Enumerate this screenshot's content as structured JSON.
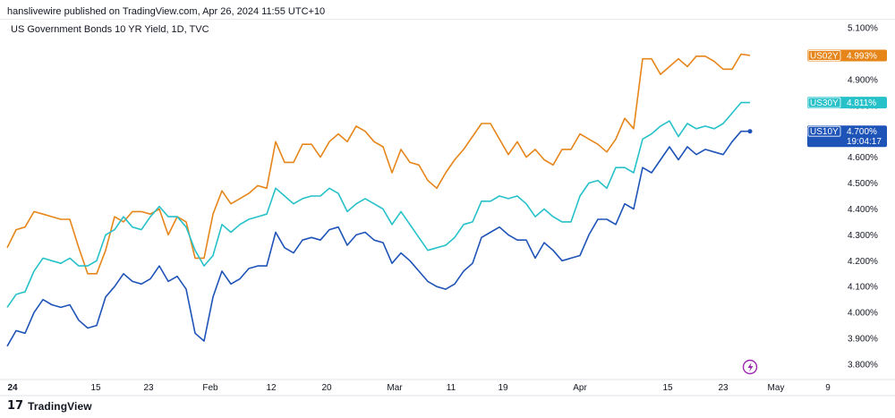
{
  "publisher_line": "hanslivewire published on TradingView.com, Apr 26, 2024 11:55 UTC+10",
  "symbol_line": "US Government Bonds 10 YR Yield, 1D, TVC",
  "footer": {
    "logo_text": "TradingView",
    "logo_mark": "17"
  },
  "colors": {
    "us02y": "#e6861a",
    "us30y": "#26c1c9",
    "us10y": "#1e53b7",
    "grid": "#f0f3fa",
    "axis": "#131722",
    "event": "#9c27b0"
  },
  "event_icon": "lightning-icon",
  "chart_data": {
    "type": "line",
    "x_unit": "trading day index",
    "x_tick_labels": [
      "24",
      "15",
      "23",
      "Feb",
      "12",
      "20",
      "Mar",
      "11",
      "19",
      "Apr",
      "15",
      "23",
      "May",
      "9"
    ],
    "y_tick_labels": [
      "3.800%",
      "3.900%",
      "4.000%",
      "4.100%",
      "4.200%",
      "4.300%",
      "4.400%",
      "4.500%",
      "4.600%",
      "4.700%",
      "4.800%",
      "4.900%",
      "5.000%",
      "5.100%"
    ],
    "ylim": [
      3.75,
      5.13
    ],
    "grid": false,
    "series": [
      {
        "name": "US02Y",
        "label": "US02Y",
        "last_value": "4.993%",
        "countdown": "",
        "values": [
          4.25,
          4.32,
          4.33,
          4.39,
          4.38,
          4.37,
          4.36,
          4.36,
          4.25,
          4.15,
          4.15,
          4.24,
          4.37,
          4.35,
          4.39,
          4.39,
          4.38,
          4.4,
          4.3,
          4.37,
          4.35,
          4.21,
          4.21,
          4.38,
          4.47,
          4.42,
          4.44,
          4.46,
          4.49,
          4.48,
          4.66,
          4.58,
          4.58,
          4.65,
          4.65,
          4.6,
          4.66,
          4.69,
          4.66,
          4.72,
          4.7,
          4.66,
          4.64,
          4.54,
          4.63,
          4.58,
          4.57,
          4.51,
          4.48,
          4.54,
          4.59,
          4.63,
          4.68,
          4.73,
          4.73,
          4.67,
          4.61,
          4.66,
          4.6,
          4.63,
          4.59,
          4.57,
          4.63,
          4.63,
          4.69,
          4.67,
          4.65,
          4.62,
          4.67,
          4.75,
          4.71,
          4.98,
          4.98,
          4.92,
          4.95,
          4.98,
          4.95,
          4.99,
          4.99,
          4.97,
          4.94,
          4.94,
          4.998,
          4.993
        ]
      },
      {
        "name": "US30Y",
        "label": "US30Y",
        "last_value": "4.811%",
        "countdown": "",
        "values": [
          4.02,
          4.07,
          4.08,
          4.16,
          4.21,
          4.2,
          4.19,
          4.21,
          4.18,
          4.18,
          4.2,
          4.3,
          4.32,
          4.37,
          4.33,
          4.32,
          4.37,
          4.41,
          4.37,
          4.37,
          4.33,
          4.24,
          4.18,
          4.22,
          4.34,
          4.31,
          4.34,
          4.36,
          4.37,
          4.38,
          4.48,
          4.45,
          4.42,
          4.44,
          4.45,
          4.45,
          4.48,
          4.46,
          4.39,
          4.42,
          4.44,
          4.42,
          4.4,
          4.34,
          4.39,
          4.34,
          4.29,
          4.24,
          4.25,
          4.26,
          4.29,
          4.34,
          4.35,
          4.43,
          4.43,
          4.45,
          4.44,
          4.45,
          4.42,
          4.37,
          4.4,
          4.37,
          4.35,
          4.35,
          4.45,
          4.5,
          4.51,
          4.48,
          4.56,
          4.56,
          4.54,
          4.67,
          4.69,
          4.72,
          4.74,
          4.68,
          4.73,
          4.71,
          4.72,
          4.71,
          4.73,
          4.77,
          4.811,
          4.811
        ]
      },
      {
        "name": "US10Y",
        "label": "US10Y",
        "last_value": "4.700%",
        "countdown": "19:04:17",
        "values": [
          3.87,
          3.93,
          3.92,
          4.0,
          4.05,
          4.03,
          4.02,
          4.03,
          3.97,
          3.94,
          3.95,
          4.06,
          4.1,
          4.15,
          4.12,
          4.11,
          4.13,
          4.18,
          4.12,
          4.14,
          4.09,
          3.92,
          3.89,
          4.06,
          4.16,
          4.11,
          4.13,
          4.17,
          4.18,
          4.18,
          4.31,
          4.25,
          4.23,
          4.28,
          4.29,
          4.28,
          4.32,
          4.33,
          4.26,
          4.3,
          4.31,
          4.28,
          4.27,
          4.19,
          4.23,
          4.2,
          4.16,
          4.12,
          4.1,
          4.09,
          4.11,
          4.16,
          4.19,
          4.29,
          4.31,
          4.33,
          4.3,
          4.28,
          4.28,
          4.21,
          4.27,
          4.24,
          4.2,
          4.21,
          4.22,
          4.3,
          4.36,
          4.36,
          4.34,
          4.42,
          4.4,
          4.56,
          4.54,
          4.59,
          4.64,
          4.59,
          4.64,
          4.61,
          4.63,
          4.62,
          4.61,
          4.66,
          4.7,
          4.7
        ]
      }
    ]
  }
}
